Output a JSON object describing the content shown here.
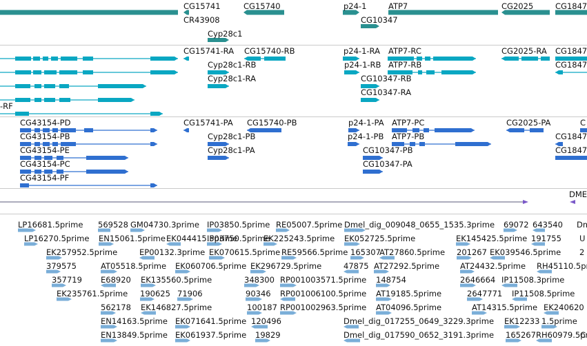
{
  "colors": {
    "gene": "#2a9090",
    "transcript": "#0aa7c2",
    "cds": "#2f6fd0",
    "insitu": "#7a58c8",
    "est": "#7aaed8",
    "separator": "#c9c9c9"
  },
  "tracks": {
    "genes": {
      "labels": [
        "CG15741",
        "CG15740",
        "p24-1",
        "ATP7",
        "CG2025",
        "CG1847",
        "CR43908",
        "CG10347",
        "Cyp28c1"
      ]
    },
    "transcripts": {
      "labels": [
        "CG15741-RA",
        "CG15740-RB",
        "p24-1-RA",
        "ATP7-RC",
        "CG2025-RA",
        "CG1847",
        "Cyp28c1-RB",
        "p24-1-RB",
        "ATP7-RB",
        "CG1847",
        "Cyp28c1-RA",
        "CG10347-RB",
        "CG10347-RA",
        "-RF"
      ]
    },
    "proteins": {
      "labels": [
        "CG43154-PD",
        "CG15741-PA",
        "CG15740-PB",
        "p24-1-PA",
        "ATP7-PC",
        "CG2025-PA",
        "C",
        "CG43154-PB",
        "Cyp28c1-PB",
        "p24-1-PB",
        "ATP7-PB",
        "CG1847",
        "CG43154-PE",
        "Cyp28c1-PA",
        "CG10347-PB",
        "CG1847",
        "CG43154-PC",
        "CG10347-PA",
        "CG43154-PF"
      ]
    },
    "insitu": {
      "labels": [
        "DME"
      ]
    },
    "ests": {
      "labels": [
        "LP16681.5prime",
        "569528",
        "GM04730.3prime",
        "IP03850.5prime",
        "RE05007.5prime",
        "Dmel_dig_009048_0655_1535.3prime",
        "69072",
        "643540",
        "Dm",
        "LP16270.5prime",
        "EN15061.5prime",
        "EK044415.5prime",
        "IP03750.5prime",
        "EK225243.5prime",
        "EK052725.5prime",
        "EK145425.5prime",
        "191755",
        "U",
        "EK257952.5prime",
        "EP00132.3prime",
        "EK070615.5prime",
        "RE59566.5prime",
        "165307",
        "AT27860.5prime",
        "201267",
        "EK039546.5prime",
        "2",
        "379575",
        "AT05518.5prime",
        "EK060706.5prime",
        "EK296729.5prime",
        "47875",
        "AT27292.5prime",
        "AT24432.5prime",
        "RH45110.5prime",
        "357719",
        "E68920",
        "EK135560.5prime",
        "348300",
        "RP001003571.5prime",
        "148754",
        "2646664",
        "IP11508.3prime",
        "EK235761.5prime",
        "190625",
        "71906",
        "90346",
        "RP001006100.5prime",
        "AT19185.5prime",
        "2647771",
        "IP11508.5prime",
        "562178",
        "EK146827.5prime",
        "100187",
        "RP001002963.5prime",
        "AT04096.5prime",
        "AT14315.5prime",
        "EK240620",
        "EN14163.5prime",
        "EK071641.5prime",
        "120496",
        "Dmel_dig_017255_0649_3229.3prime",
        "EK12233",
        "1.5prime",
        "EN13849.5prime",
        "EK061937.5prime",
        "19829",
        "Dmel_dig_017590_0652_3191.3prime",
        "165267",
        "RH60979.5prime",
        "C"
      ]
    }
  }
}
